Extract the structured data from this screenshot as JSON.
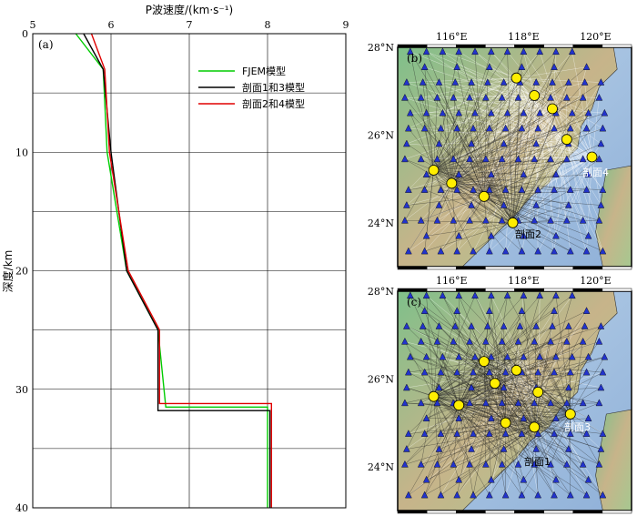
{
  "chart_data": [
    {
      "type": "line",
      "panel_label": "(a)",
      "xlabel": "P波速度/(km·s⁻¹)",
      "ylabel": "深度/km",
      "xlim": [
        5,
        9
      ],
      "ylim": [
        0,
        40
      ],
      "x_ticks": [
        "5",
        "6",
        "7",
        "8",
        "9"
      ],
      "y_ticks": [
        "0",
        "10",
        "20",
        "30",
        "40"
      ],
      "y_inverted": true,
      "grid": true,
      "legend_position": "top-right",
      "series": [
        {
          "name": "FJEM模型",
          "color": "#00cc00",
          "points": [
            [
              5.55,
              0
            ],
            [
              5.9,
              3
            ],
            [
              5.95,
              10
            ],
            [
              6.2,
              20
            ],
            [
              6.6,
              25
            ],
            [
              6.7,
              31.5
            ],
            [
              8.0,
              31.5
            ],
            [
              8.0,
              40
            ]
          ]
        },
        {
          "name": "剖面1和3模型",
          "color": "#000000",
          "points": [
            [
              5.65,
              0
            ],
            [
              5.9,
              3
            ],
            [
              6.0,
              10
            ],
            [
              6.2,
              20
            ],
            [
              6.6,
              25
            ],
            [
              6.6,
              31.8
            ],
            [
              8.03,
              31.8
            ],
            [
              8.03,
              40
            ]
          ]
        },
        {
          "name": "剖面2和4模型",
          "color": "#e00000",
          "points": [
            [
              5.75,
              0
            ],
            [
              5.92,
              3
            ],
            [
              5.98,
              10
            ],
            [
              6.22,
              20
            ],
            [
              6.62,
              25
            ],
            [
              6.62,
              31.2
            ],
            [
              8.05,
              31.2
            ],
            [
              8.05,
              40
            ]
          ]
        }
      ]
    },
    {
      "type": "scatter",
      "panel_label": "(b)",
      "lon_ticks": [
        "116°E",
        "118°E",
        "120°E"
      ],
      "lat_ticks": [
        "28°N",
        "26°N",
        "24°N"
      ],
      "xlim": [
        114.5,
        121
      ],
      "ylim": [
        23,
        28
      ],
      "profile_labels": [
        "剖面4",
        "剖面2"
      ],
      "shot_points": [
        [
          117.8,
          27.3
        ],
        [
          118.3,
          26.9
        ],
        [
          118.8,
          26.6
        ],
        [
          119.2,
          25.9
        ],
        [
          119.9,
          25.5
        ],
        [
          115.5,
          25.2
        ],
        [
          116.0,
          24.9
        ],
        [
          116.9,
          24.6
        ],
        [
          117.7,
          24.0
        ]
      ]
    },
    {
      "type": "scatter",
      "panel_label": "(c)",
      "lon_ticks": [
        "116°E",
        "118°E",
        "120°E"
      ],
      "lat_ticks": [
        "28°N",
        "26°N",
        "24°N"
      ],
      "xlim": [
        114.5,
        121
      ],
      "ylim": [
        23,
        28
      ],
      "profile_labels": [
        "剖面3",
        "剖面1"
      ],
      "shot_points": [
        [
          116.9,
          26.4
        ],
        [
          117.8,
          26.2
        ],
        [
          117.2,
          25.9
        ],
        [
          118.4,
          25.7
        ],
        [
          115.5,
          25.6
        ],
        [
          116.2,
          25.4
        ],
        [
          117.5,
          25.0
        ],
        [
          118.3,
          24.9
        ],
        [
          119.3,
          25.2
        ]
      ]
    }
  ]
}
